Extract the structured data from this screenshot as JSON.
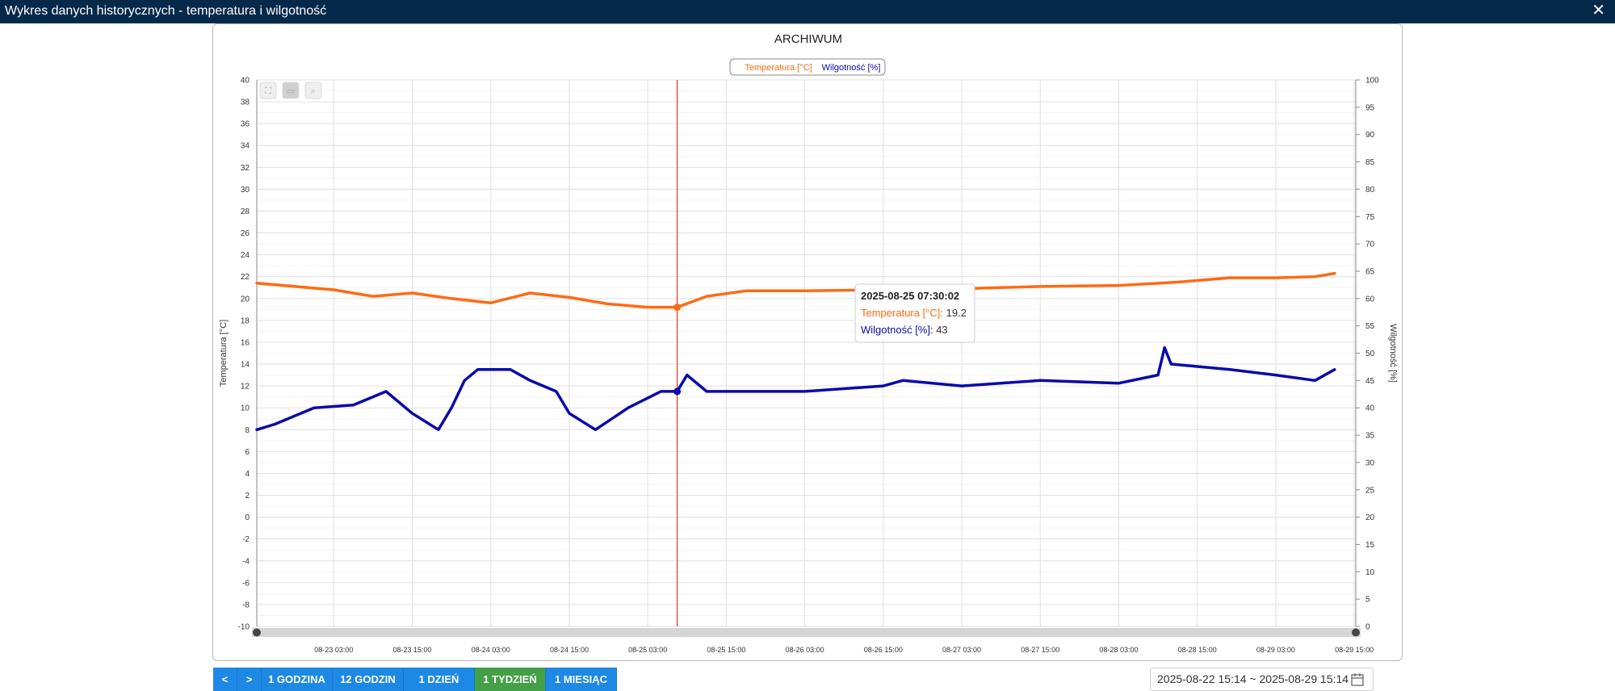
{
  "window": {
    "title": "Wykres danych historycznych - temperatura i wilgotność",
    "close_icon": "close-icon"
  },
  "colors": {
    "temperature": "#ff6a13",
    "humidity": "#0a0aa8",
    "cursor": "#e0302a",
    "active_button": "#43a047",
    "button": "#1e88e5",
    "titlebar": "#06294a"
  },
  "toolbar_icons": [
    "fullscreen-icon",
    "reset-zoom-icon",
    "zoom-icon"
  ],
  "chart_data": {
    "type": "line",
    "title": "ARCHIWUM",
    "legend": [
      "Temperatura [°C]",
      "Wilgotność [%]"
    ],
    "legend_position": "top-center",
    "grid": true,
    "x_range": [
      "2025-08-22 15:14",
      "2025-08-29 15:14"
    ],
    "x_ticks": [
      "08-23 03:00",
      "08-23 15:00",
      "08-24 03:00",
      "08-24 15:00",
      "08-25 03:00",
      "08-25 15:00",
      "08-26 03:00",
      "08-26 15:00",
      "08-27 03:00",
      "08-27 15:00",
      "08-28 03:00",
      "08-28 15:00",
      "08-29 03:00",
      "08-29 15:00"
    ],
    "y_left": {
      "label": "Temperatura [°C]",
      "min": -10,
      "max": 40,
      "step": 2
    },
    "y_right": {
      "label": "Wilgotność [%]",
      "min": 0,
      "max": 100,
      "step": 5
    },
    "series": [
      {
        "name": "Temperatura [°C]",
        "axis": "left",
        "points": [
          [
            "2025-08-22 15:14",
            21.4
          ],
          [
            "2025-08-23 03:00",
            20.8
          ],
          [
            "2025-08-23 09:00",
            20.2
          ],
          [
            "2025-08-23 15:00",
            20.5
          ],
          [
            "2025-08-23 21:00",
            20.0
          ],
          [
            "2025-08-24 03:00",
            19.6
          ],
          [
            "2025-08-24 09:00",
            20.5
          ],
          [
            "2025-08-24 15:00",
            20.1
          ],
          [
            "2025-08-24 21:00",
            19.5
          ],
          [
            "2025-08-25 03:00",
            19.2
          ],
          [
            "2025-08-25 07:30",
            19.2
          ],
          [
            "2025-08-25 12:00",
            20.2
          ],
          [
            "2025-08-25 18:00",
            20.7
          ],
          [
            "2025-08-26 03:00",
            20.7
          ],
          [
            "2025-08-26 15:00",
            20.8
          ],
          [
            "2025-08-27 03:00",
            20.9
          ],
          [
            "2025-08-27 15:00",
            21.1
          ],
          [
            "2025-08-28 03:00",
            21.2
          ],
          [
            "2025-08-28 12:00",
            21.5
          ],
          [
            "2025-08-28 20:00",
            21.9
          ],
          [
            "2025-08-29 03:00",
            21.9
          ],
          [
            "2025-08-29 09:00",
            22.0
          ],
          [
            "2025-08-29 12:00",
            22.3
          ]
        ]
      },
      {
        "name": "Wilgotność [%]",
        "axis": "right",
        "points": [
          [
            "2025-08-22 15:14",
            36
          ],
          [
            "2025-08-22 18:00",
            37
          ],
          [
            "2025-08-23 00:00",
            40
          ],
          [
            "2025-08-23 06:00",
            40.5
          ],
          [
            "2025-08-23 11:00",
            43
          ],
          [
            "2025-08-23 15:00",
            39
          ],
          [
            "2025-08-23 19:00",
            36
          ],
          [
            "2025-08-23 21:00",
            40
          ],
          [
            "2025-08-23 23:00",
            45
          ],
          [
            "2025-08-24 01:00",
            47
          ],
          [
            "2025-08-24 06:00",
            47
          ],
          [
            "2025-08-24 09:00",
            45
          ],
          [
            "2025-08-24 13:00",
            43
          ],
          [
            "2025-08-24 15:00",
            39
          ],
          [
            "2025-08-24 19:00",
            36
          ],
          [
            "2025-08-25 00:00",
            40
          ],
          [
            "2025-08-25 05:00",
            43
          ],
          [
            "2025-08-25 07:30",
            43
          ],
          [
            "2025-08-25 09:00",
            46
          ],
          [
            "2025-08-25 12:00",
            43
          ],
          [
            "2025-08-26 03:00",
            43
          ],
          [
            "2025-08-26 15:00",
            44
          ],
          [
            "2025-08-26 18:00",
            45
          ],
          [
            "2025-08-27 03:00",
            44
          ],
          [
            "2025-08-27 15:00",
            45
          ],
          [
            "2025-08-28 03:00",
            44.5
          ],
          [
            "2025-08-28 09:00",
            46
          ],
          [
            "2025-08-28 10:00",
            51
          ],
          [
            "2025-08-28 11:00",
            48
          ],
          [
            "2025-08-28 20:00",
            47
          ],
          [
            "2025-08-29 03:00",
            46
          ],
          [
            "2025-08-29 09:00",
            45
          ],
          [
            "2025-08-29 12:00",
            47
          ]
        ]
      }
    ],
    "tooltip": {
      "time": "2025-08-25 07:30:02",
      "temp_label": "Temperatura [°C]:",
      "temp_value": "19.2",
      "hum_label": "Wilgotność [%]:",
      "hum_value": "43"
    }
  },
  "range_buttons": [
    {
      "label": "<",
      "active": false
    },
    {
      "label": ">",
      "active": false
    },
    {
      "label": "1 GODZINA",
      "active": false
    },
    {
      "label": "12 GODZIN",
      "active": false
    },
    {
      "label": "1 DZIEŃ",
      "active": false
    },
    {
      "label": "1 TYDZIEŃ",
      "active": true
    },
    {
      "label": "1 MIESIĄC",
      "active": false
    }
  ],
  "date_range": {
    "value": "2025-08-22 15:14 ~ 2025-08-29 15:14",
    "icon": "calendar-icon"
  }
}
